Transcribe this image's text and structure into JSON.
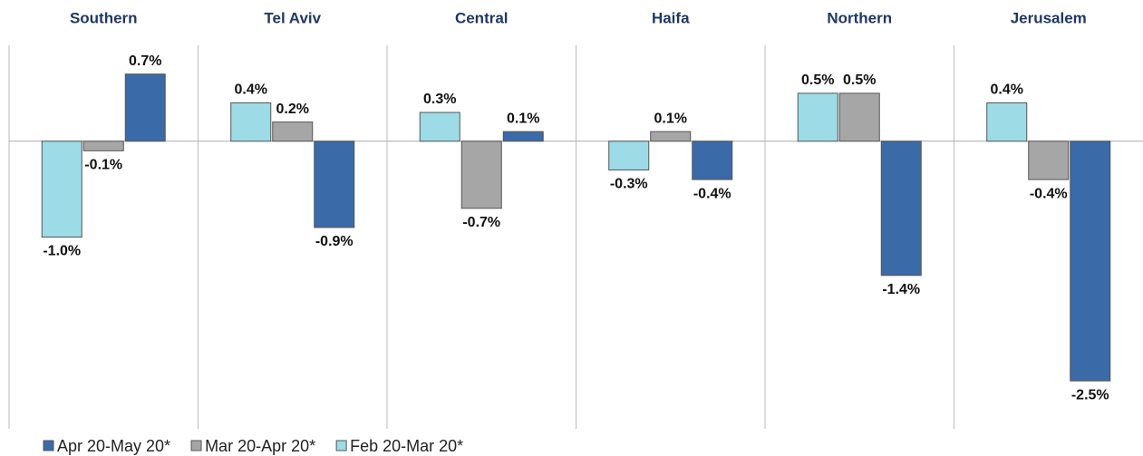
{
  "chart_data": {
    "type": "bar",
    "categories": [
      "Southern",
      "Tel Aviv",
      "Central",
      "Haifa",
      "Northern",
      "Jerusalem"
    ],
    "series": [
      {
        "name": "Apr 20-May 20*",
        "color": "#3b6aa8",
        "values": [
          0.7,
          -0.9,
          0.1,
          -0.4,
          -1.4,
          -2.5
        ],
        "value_labels": [
          "0.7%",
          "-0.9%",
          "0.1%",
          "-0.4%",
          "-1.4%",
          "-2.5%"
        ]
      },
      {
        "name": "Mar 20-Apr 20*",
        "color": "#a6a6a6",
        "values": [
          -0.1,
          0.2,
          -0.7,
          0.1,
          0.5,
          -0.4
        ],
        "value_labels": [
          "-0.1%",
          "0.2%",
          "-0.7%",
          "0.1%",
          "0.5%",
          "-0.4%"
        ]
      },
      {
        "name": "Feb 20-Mar 20*",
        "color": "#9ddbe6",
        "values": [
          -1.0,
          0.4,
          0.3,
          -0.3,
          0.5,
          0.4
        ],
        "value_labels": [
          "-1.0%",
          "0.4%",
          "0.3%",
          "-0.3%",
          "0.5%",
          "0.4%"
        ]
      }
    ],
    "ylim": [
      -3,
      1
    ]
  }
}
